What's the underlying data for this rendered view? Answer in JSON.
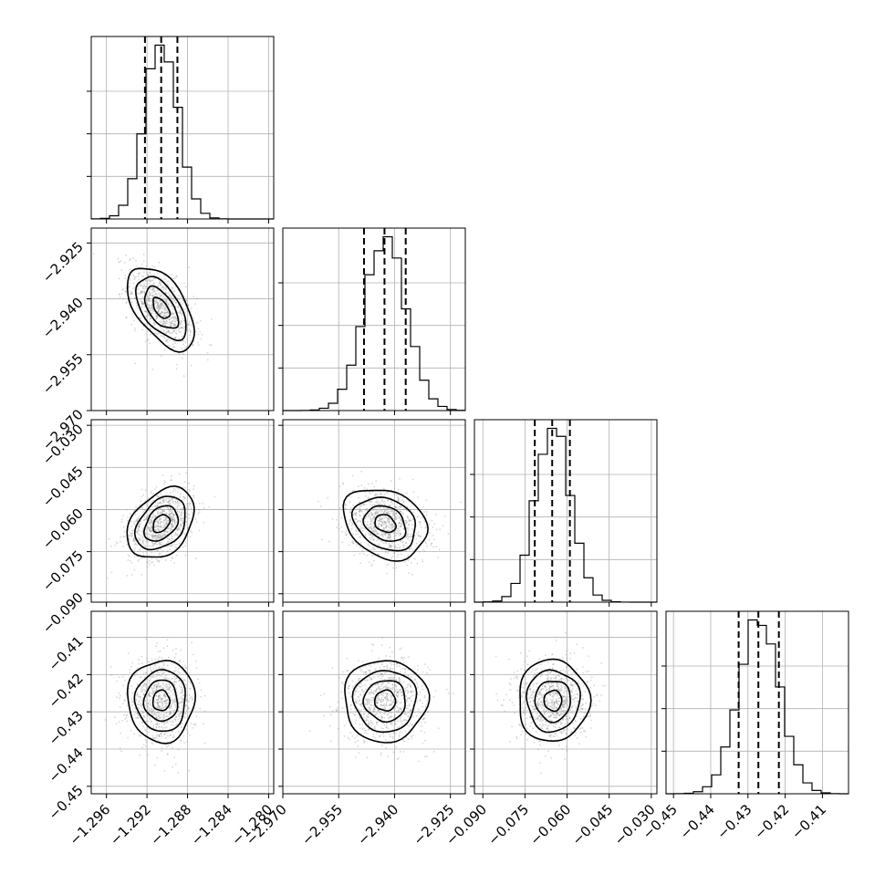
{
  "chart_data": {
    "type": "corner",
    "parameters": [
      {
        "mean": -1.2906,
        "sd": 0.00165,
        "lim": [
          -1.2975,
          -1.2795
        ],
        "ticks": [
          -1.296,
          -1.292,
          -1.288,
          -1.284,
          -1.28
        ],
        "tick_labels": [
          "−1.296",
          "−1.292",
          "−1.288",
          "−1.284",
          "−1.280"
        ],
        "quantiles": [
          -1.2922,
          -1.2906,
          -1.289
        ],
        "hist_bins": 20
      },
      {
        "mean": -2.9425,
        "sd": 0.0056,
        "lim": [
          -2.97,
          -2.921
        ],
        "ticks": [
          -2.97,
          -2.955,
          -2.94,
          -2.925
        ],
        "tick_labels": [
          "−2.970",
          "−2.955",
          "−2.940",
          "−2.925"
        ],
        "quantiles": [
          -2.9482,
          -2.9427,
          -2.937
        ],
        "hist_bins": 20
      },
      {
        "mean": -0.065,
        "sd": 0.0063,
        "lim": [
          -0.093,
          -0.028
        ],
        "ticks": [
          -0.09,
          -0.075,
          -0.06,
          -0.045,
          -0.03
        ],
        "tick_labels": [
          "−0.090",
          "−0.075",
          "−0.060",
          "−0.045",
          "−0.030"
        ],
        "quantiles": [
          -0.0715,
          -0.0653,
          -0.059
        ],
        "hist_bins": 20
      },
      {
        "mean": -0.427,
        "sd": 0.0055,
        "lim": [
          -0.452,
          -0.403
        ],
        "ticks": [
          -0.45,
          -0.44,
          -0.43,
          -0.42,
          -0.41
        ],
        "tick_labels": [
          "−0.45",
          "−0.44",
          "−0.43",
          "−0.42",
          "−0.41"
        ],
        "quantiles": [
          -0.4325,
          -0.4272,
          -0.4217
        ],
        "hist_bins": 20
      }
    ],
    "correlations": [
      [
        1,
        -0.55,
        0.35,
        0
      ],
      [
        -0.55,
        1,
        -0.25,
        0
      ],
      [
        0.35,
        -0.25,
        1,
        0
      ],
      [
        0,
        0,
        0,
        1
      ]
    ],
    "contour_levels_sigma": [
      0.5,
      1.0,
      1.5,
      2.0
    ],
    "grid": true,
    "title": "",
    "xlabel": "",
    "ylabel": ""
  }
}
